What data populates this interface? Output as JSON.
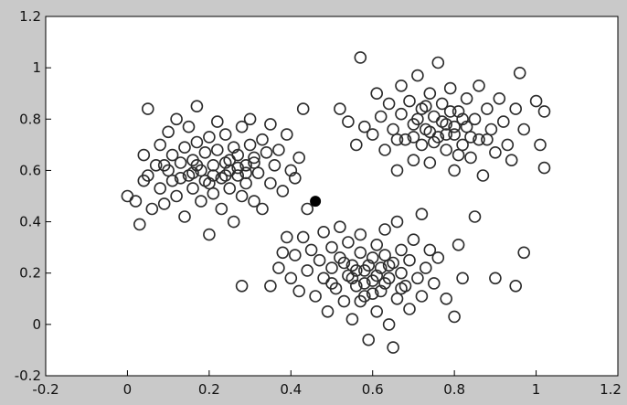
{
  "figure": {
    "background_color": "#c9c9c9",
    "axes_color": "#ffffff",
    "marker_color": "#2b2b2b",
    "centroid_color": "#000000"
  },
  "chart_data": {
    "type": "scatter",
    "title": "",
    "xlabel": "",
    "ylabel": "",
    "xlim": [
      -0.2,
      1.2
    ],
    "ylim": [
      -0.2,
      1.2
    ],
    "grid": false,
    "legend": "none",
    "x_ticks": [
      "-0.2",
      "0",
      "0.2",
      "0.4",
      "0.6",
      "0.8",
      "1",
      "1.2"
    ],
    "y_ticks": [
      "-0.2",
      "0",
      "0.2",
      "0.4",
      "0.6",
      "0.8",
      "1",
      "1.2"
    ],
    "marker": "open-circle",
    "series": [
      {
        "points": [
          [
            0.0,
            0.5
          ],
          [
            0.02,
            0.48
          ],
          [
            0.03,
            0.39
          ],
          [
            0.04,
            0.56
          ],
          [
            0.04,
            0.66
          ],
          [
            0.05,
            0.58
          ],
          [
            0.05,
            0.84
          ],
          [
            0.06,
            0.45
          ],
          [
            0.07,
            0.62
          ],
          [
            0.08,
            0.53
          ],
          [
            0.08,
            0.7
          ],
          [
            0.09,
            0.47
          ],
          [
            0.1,
            0.6
          ],
          [
            0.1,
            0.75
          ],
          [
            0.11,
            0.66
          ],
          [
            0.11,
            0.56
          ],
          [
            0.12,
            0.8
          ],
          [
            0.12,
            0.5
          ],
          [
            0.13,
            0.63
          ],
          [
            0.14,
            0.69
          ],
          [
            0.14,
            0.42
          ],
          [
            0.15,
            0.58
          ],
          [
            0.15,
            0.77
          ],
          [
            0.16,
            0.53
          ],
          [
            0.16,
            0.64
          ],
          [
            0.17,
            0.85
          ],
          [
            0.17,
            0.71
          ],
          [
            0.18,
            0.48
          ],
          [
            0.18,
            0.6
          ],
          [
            0.19,
            0.67
          ],
          [
            0.19,
            0.56
          ],
          [
            0.2,
            0.73
          ],
          [
            0.2,
            0.35
          ],
          [
            0.21,
            0.62
          ],
          [
            0.21,
            0.51
          ],
          [
            0.22,
            0.79
          ],
          [
            0.22,
            0.68
          ],
          [
            0.23,
            0.57
          ],
          [
            0.23,
            0.45
          ],
          [
            0.24,
            0.63
          ],
          [
            0.24,
            0.74
          ],
          [
            0.25,
            0.53
          ],
          [
            0.25,
            0.6
          ],
          [
            0.26,
            0.69
          ],
          [
            0.26,
            0.4
          ],
          [
            0.27,
            0.58
          ],
          [
            0.27,
            0.66
          ],
          [
            0.28,
            0.5
          ],
          [
            0.28,
            0.77
          ],
          [
            0.29,
            0.62
          ],
          [
            0.29,
            0.55
          ],
          [
            0.3,
            0.8
          ],
          [
            0.3,
            0.7
          ],
          [
            0.31,
            0.48
          ],
          [
            0.31,
            0.63
          ],
          [
            0.32,
            0.59
          ],
          [
            0.33,
            0.72
          ],
          [
            0.33,
            0.45
          ],
          [
            0.34,
            0.67
          ],
          [
            0.35,
            0.55
          ],
          [
            0.35,
            0.78
          ],
          [
            0.36,
            0.62
          ],
          [
            0.37,
            0.68
          ],
          [
            0.38,
            0.52
          ],
          [
            0.39,
            0.74
          ],
          [
            0.4,
            0.6
          ],
          [
            0.41,
            0.57
          ],
          [
            0.42,
            0.65
          ],
          [
            0.43,
            0.84
          ],
          [
            0.09,
            0.62
          ],
          [
            0.13,
            0.57
          ],
          [
            0.17,
            0.62
          ],
          [
            0.21,
            0.58
          ],
          [
            0.25,
            0.64
          ],
          [
            0.29,
            0.59
          ],
          [
            0.24,
            0.58
          ],
          [
            0.2,
            0.55
          ],
          [
            0.16,
            0.59
          ],
          [
            0.31,
            0.65
          ],
          [
            0.27,
            0.61
          ],
          [
            0.57,
            1.04
          ],
          [
            0.52,
            0.84
          ],
          [
            0.54,
            0.79
          ],
          [
            0.56,
            0.7
          ],
          [
            0.58,
            0.77
          ],
          [
            0.6,
            0.74
          ],
          [
            0.61,
            0.9
          ],
          [
            0.62,
            0.81
          ],
          [
            0.63,
            0.68
          ],
          [
            0.64,
            0.86
          ],
          [
            0.65,
            0.76
          ],
          [
            0.66,
            0.6
          ],
          [
            0.67,
            0.82
          ],
          [
            0.67,
            0.93
          ],
          [
            0.68,
            0.72
          ],
          [
            0.69,
            0.87
          ],
          [
            0.7,
            0.64
          ],
          [
            0.7,
            0.78
          ],
          [
            0.71,
            0.97
          ],
          [
            0.72,
            0.84
          ],
          [
            0.72,
            0.7
          ],
          [
            0.73,
            0.76
          ],
          [
            0.74,
            0.9
          ],
          [
            0.74,
            0.63
          ],
          [
            0.75,
            0.81
          ],
          [
            0.76,
            0.73
          ],
          [
            0.76,
            1.02
          ],
          [
            0.77,
            0.86
          ],
          [
            0.78,
            0.68
          ],
          [
            0.78,
            0.78
          ],
          [
            0.79,
            0.92
          ],
          [
            0.8,
            0.74
          ],
          [
            0.8,
            0.6
          ],
          [
            0.81,
            0.83
          ],
          [
            0.82,
            0.7
          ],
          [
            0.83,
            0.88
          ],
          [
            0.83,
            0.77
          ],
          [
            0.84,
            0.65
          ],
          [
            0.85,
            0.8
          ],
          [
            0.86,
            0.93
          ],
          [
            0.86,
            0.72
          ],
          [
            0.87,
            0.58
          ],
          [
            0.88,
            0.84
          ],
          [
            0.89,
            0.76
          ],
          [
            0.9,
            0.67
          ],
          [
            0.91,
            0.88
          ],
          [
            0.92,
            0.79
          ],
          [
            0.93,
            0.7
          ],
          [
            0.94,
            0.64
          ],
          [
            0.95,
            0.84
          ],
          [
            0.96,
            0.98
          ],
          [
            0.97,
            0.76
          ],
          [
            1.0,
            0.87
          ],
          [
            1.01,
            0.7
          ],
          [
            1.02,
            0.61
          ],
          [
            1.02,
            0.83
          ],
          [
            0.74,
            0.75
          ],
          [
            0.77,
            0.79
          ],
          [
            0.8,
            0.77
          ],
          [
            0.82,
            0.8
          ],
          [
            0.75,
            0.71
          ],
          [
            0.78,
            0.74
          ],
          [
            0.84,
            0.73
          ],
          [
            0.71,
            0.8
          ],
          [
            0.79,
            0.83
          ],
          [
            0.81,
            0.66
          ],
          [
            0.7,
            0.73
          ],
          [
            0.88,
            0.72
          ],
          [
            0.66,
            0.72
          ],
          [
            0.73,
            0.85
          ],
          [
            0.28,
            0.15
          ],
          [
            0.35,
            0.15
          ],
          [
            0.37,
            0.22
          ],
          [
            0.38,
            0.28
          ],
          [
            0.39,
            0.34
          ],
          [
            0.4,
            0.18
          ],
          [
            0.41,
            0.27
          ],
          [
            0.42,
            0.13
          ],
          [
            0.43,
            0.34
          ],
          [
            0.44,
            0.21
          ],
          [
            0.44,
            0.45
          ],
          [
            0.45,
            0.29
          ],
          [
            0.46,
            0.11
          ],
          [
            0.47,
            0.25
          ],
          [
            0.48,
            0.18
          ],
          [
            0.48,
            0.36
          ],
          [
            0.49,
            0.05
          ],
          [
            0.5,
            0.22
          ],
          [
            0.5,
            0.3
          ],
          [
            0.51,
            0.14
          ],
          [
            0.52,
            0.26
          ],
          [
            0.52,
            0.38
          ],
          [
            0.53,
            0.09
          ],
          [
            0.54,
            0.19
          ],
          [
            0.54,
            0.32
          ],
          [
            0.55,
            0.23
          ],
          [
            0.55,
            0.02
          ],
          [
            0.56,
            0.15
          ],
          [
            0.57,
            0.28
          ],
          [
            0.57,
            0.35
          ],
          [
            0.58,
            0.11
          ],
          [
            0.58,
            0.21
          ],
          [
            0.59,
            -0.06
          ],
          [
            0.6,
            0.26
          ],
          [
            0.6,
            0.17
          ],
          [
            0.61,
            0.05
          ],
          [
            0.61,
            0.31
          ],
          [
            0.62,
            0.22
          ],
          [
            0.62,
            0.13
          ],
          [
            0.63,
            0.27
          ],
          [
            0.63,
            0.37
          ],
          [
            0.64,
            0.18
          ],
          [
            0.64,
            0.0
          ],
          [
            0.65,
            -0.09
          ],
          [
            0.65,
            0.24
          ],
          [
            0.66,
            0.1
          ],
          [
            0.66,
            0.4
          ],
          [
            0.67,
            0.2
          ],
          [
            0.67,
            0.29
          ],
          [
            0.68,
            0.15
          ],
          [
            0.69,
            0.06
          ],
          [
            0.69,
            0.25
          ],
          [
            0.7,
            0.33
          ],
          [
            0.71,
            0.18
          ],
          [
            0.72,
            0.43
          ],
          [
            0.72,
            0.11
          ],
          [
            0.73,
            0.22
          ],
          [
            0.74,
            0.29
          ],
          [
            0.75,
            0.16
          ],
          [
            0.76,
            0.26
          ],
          [
            0.78,
            0.1
          ],
          [
            0.8,
            0.03
          ],
          [
            0.81,
            0.31
          ],
          [
            0.82,
            0.18
          ],
          [
            0.85,
            0.42
          ],
          [
            0.9,
            0.18
          ],
          [
            0.95,
            0.15
          ],
          [
            0.97,
            0.28
          ],
          [
            0.55,
            0.18
          ],
          [
            0.58,
            0.16
          ],
          [
            0.61,
            0.19
          ],
          [
            0.59,
            0.23
          ],
          [
            0.56,
            0.21
          ],
          [
            0.63,
            0.16
          ],
          [
            0.53,
            0.24
          ],
          [
            0.6,
            0.12
          ],
          [
            0.64,
            0.23
          ],
          [
            0.57,
            0.09
          ],
          [
            0.5,
            0.16
          ],
          [
            0.67,
            0.14
          ]
        ]
      }
    ],
    "centroid_points": [
      [
        0.46,
        0.48
      ]
    ]
  }
}
